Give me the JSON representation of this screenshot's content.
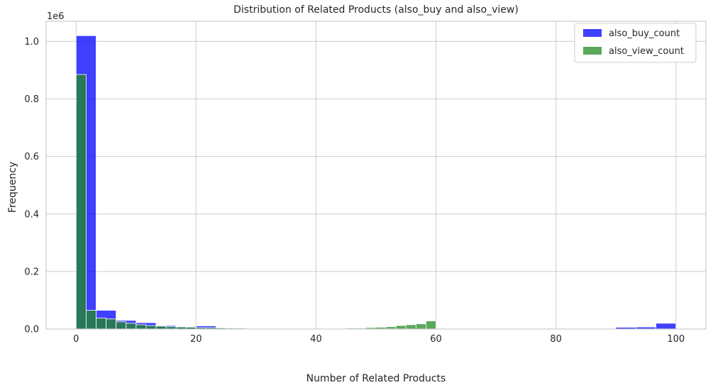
{
  "chart_data": {
    "type": "bar",
    "title": "Distribution of Related Products (also_buy and also_view)",
    "xlabel": "Number of Related Products",
    "ylabel": "Frequency",
    "y_offset_label": "1e6",
    "xlim": [
      -5,
      105
    ],
    "ylim": [
      0,
      1.07
    ],
    "x_ticks": [
      0,
      20,
      40,
      60,
      80,
      100
    ],
    "y_ticks": [
      0.0,
      0.2,
      0.4,
      0.6,
      0.8,
      1.0
    ],
    "grid": true,
    "legend_position": "top-right",
    "series": [
      {
        "name": "also_buy_count",
        "color": "#0000ff",
        "bin_width": 3.333,
        "bins": [
          {
            "x0": 0.0,
            "value": 1.02
          },
          {
            "x0": 3.333,
            "value": 0.065
          },
          {
            "x0": 6.667,
            "value": 0.03
          },
          {
            "x0": 10.0,
            "value": 0.022
          },
          {
            "x0": 13.333,
            "value": 0.012
          },
          {
            "x0": 16.667,
            "value": 0.008
          },
          {
            "x0": 20.0,
            "value": 0.011
          },
          {
            "x0": 23.333,
            "value": 0.003
          },
          {
            "x0": 26.667,
            "value": 0.002
          },
          {
            "x0": 30.0,
            "value": 0.002
          },
          {
            "x0": 33.333,
            "value": 0.001
          },
          {
            "x0": 36.667,
            "value": 0.001
          },
          {
            "x0": 90.0,
            "value": 0.006
          },
          {
            "x0": 93.333,
            "value": 0.007
          },
          {
            "x0": 96.667,
            "value": 0.02
          }
        ]
      },
      {
        "name": "also_view_count",
        "color": "#228b22",
        "bin_width": 1.667,
        "bins": [
          {
            "x0": 0.0,
            "value": 0.885
          },
          {
            "x0": 1.667,
            "value": 0.065
          },
          {
            "x0": 3.333,
            "value": 0.038
          },
          {
            "x0": 5.0,
            "value": 0.035
          },
          {
            "x0": 6.667,
            "value": 0.025
          },
          {
            "x0": 8.333,
            "value": 0.02
          },
          {
            "x0": 10.0,
            "value": 0.015
          },
          {
            "x0": 11.667,
            "value": 0.012
          },
          {
            "x0": 13.333,
            "value": 0.01
          },
          {
            "x0": 15.0,
            "value": 0.008
          },
          {
            "x0": 16.667,
            "value": 0.007
          },
          {
            "x0": 18.333,
            "value": 0.006
          },
          {
            "x0": 20.0,
            "value": 0.005
          },
          {
            "x0": 21.667,
            "value": 0.005
          },
          {
            "x0": 23.333,
            "value": 0.004
          },
          {
            "x0": 25.0,
            "value": 0.003
          },
          {
            "x0": 26.667,
            "value": 0.003
          },
          {
            "x0": 28.333,
            "value": 0.002
          },
          {
            "x0": 30.0,
            "value": 0.002
          },
          {
            "x0": 31.667,
            "value": 0.002
          },
          {
            "x0": 33.333,
            "value": 0.002
          },
          {
            "x0": 35.0,
            "value": 0.002
          },
          {
            "x0": 36.667,
            "value": 0.002
          },
          {
            "x0": 38.333,
            "value": 0.002
          },
          {
            "x0": 40.0,
            "value": 0.002
          },
          {
            "x0": 41.667,
            "value": 0.002
          },
          {
            "x0": 43.333,
            "value": 0.002
          },
          {
            "x0": 45.0,
            "value": 0.003
          },
          {
            "x0": 46.667,
            "value": 0.003
          },
          {
            "x0": 48.333,
            "value": 0.005
          },
          {
            "x0": 50.0,
            "value": 0.006
          },
          {
            "x0": 51.667,
            "value": 0.008
          },
          {
            "x0": 53.333,
            "value": 0.012
          },
          {
            "x0": 55.0,
            "value": 0.015
          },
          {
            "x0": 56.667,
            "value": 0.018
          },
          {
            "x0": 58.333,
            "value": 0.028
          },
          {
            "x0": 60.0,
            "value": 0.001
          }
        ]
      }
    ]
  }
}
